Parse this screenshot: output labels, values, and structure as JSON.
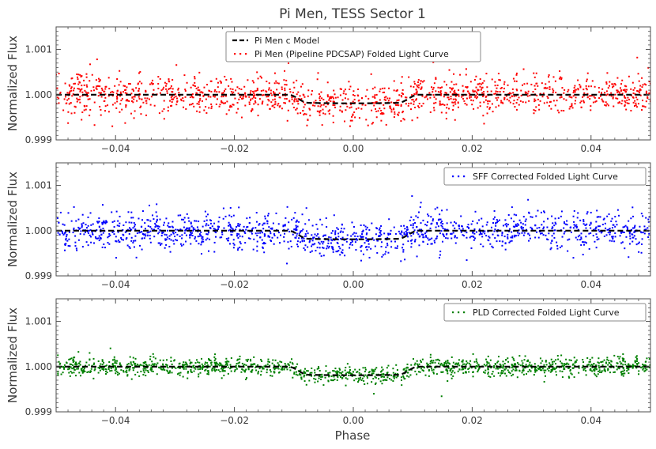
{
  "figure": {
    "title": "Pi Men, TESS Sector 1",
    "xlabel": "Phase"
  },
  "chart_data": [
    {
      "type": "scatter",
      "panel": 1,
      "ylabel": "Normalized Flux",
      "xlim": [
        -0.05,
        0.05
      ],
      "ylim": [
        0.999,
        1.0015
      ],
      "xticks": [
        -0.04,
        -0.02,
        0.0,
        0.02,
        0.04
      ],
      "xtick_labels": [
        "−0.04",
        "−0.02",
        "0.00",
        "0.02",
        "0.04"
      ],
      "yticks": [
        0.999,
        1.0,
        1.001
      ],
      "ytick_labels": [
        "0.999",
        "1.000",
        "1.001"
      ],
      "legend_location": "top-center",
      "series": [
        {
          "name": "Pi Men c Model",
          "kind": "model-line",
          "color": "#000000"
        },
        {
          "name": "Pi Men (Pipeline PDCSAP) Folded Light Curve",
          "kind": "points",
          "color": "#ff0000",
          "scatter_sigma": 0.00022,
          "n_points": 1400,
          "seed": 11
        }
      ]
    },
    {
      "type": "scatter",
      "panel": 2,
      "ylabel": "Normalized Flux",
      "xlim": [
        -0.05,
        0.05
      ],
      "ylim": [
        0.999,
        1.0015
      ],
      "xticks": [
        -0.04,
        -0.02,
        0.0,
        0.02,
        0.04
      ],
      "xtick_labels": [
        "−0.04",
        "−0.02",
        "0.00",
        "0.02",
        "0.04"
      ],
      "yticks": [
        0.999,
        1.0,
        1.001
      ],
      "ytick_labels": [
        "0.999",
        "1.000",
        "1.001"
      ],
      "legend_location": "top-right",
      "series": [
        {
          "name": "Pi Men c Model",
          "kind": "model-line",
          "color": "#000000",
          "in_legend": false
        },
        {
          "name": "SFF Corrected Folded Light Curve",
          "kind": "points",
          "color": "#0000ff",
          "scatter_sigma": 0.0002,
          "n_points": 1400,
          "seed": 23
        }
      ]
    },
    {
      "type": "scatter",
      "panel": 3,
      "ylabel": "Normalized Flux",
      "xlim": [
        -0.05,
        0.05
      ],
      "ylim": [
        0.999,
        1.0015
      ],
      "xticks": [
        -0.04,
        -0.02,
        0.0,
        0.02,
        0.04
      ],
      "xtick_labels": [
        "−0.04",
        "−0.02",
        "0.00",
        "0.02",
        "0.04"
      ],
      "yticks": [
        0.999,
        1.0,
        1.001
      ],
      "ytick_labels": [
        "0.999",
        "1.000",
        "1.001"
      ],
      "legend_location": "top-right",
      "series": [
        {
          "name": "Pi Men c Model",
          "kind": "model-line",
          "color": "#000000",
          "in_legend": false
        },
        {
          "name": "PLD Corrected Folded Light Curve",
          "kind": "points",
          "color": "#008000",
          "scatter_sigma": 0.0001,
          "n_points": 1400,
          "seed": 37
        }
      ]
    }
  ],
  "model": {
    "baseline": 1.0,
    "transit_depth": 0.00018,
    "ingress_start": -0.011,
    "full_start": -0.0075,
    "full_end": 0.0075,
    "egress_end": 0.011
  }
}
